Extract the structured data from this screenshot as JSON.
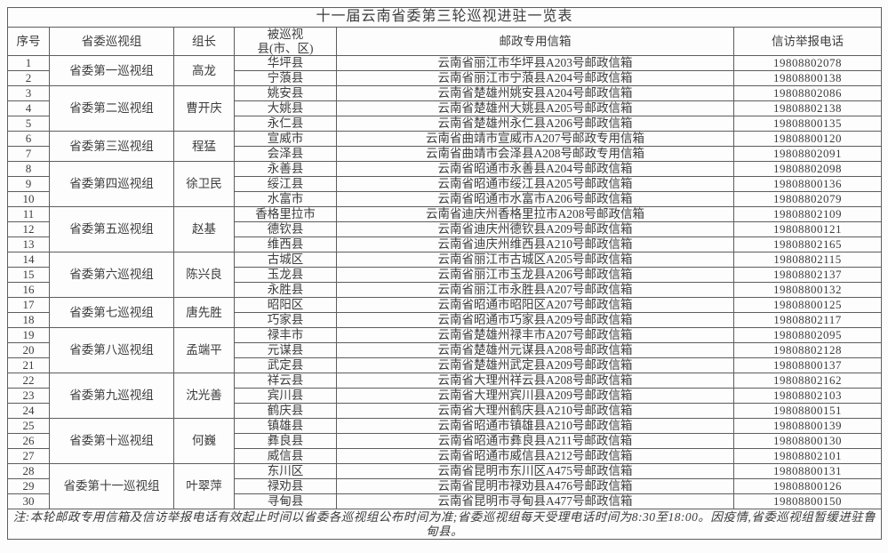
{
  "theme": {
    "background": "#fcfcfc",
    "border_color": "#5d5d5d",
    "text_color": "#3c3c3c"
  },
  "page": {
    "title": "十一届云南省委第三轮巡视进驻一览表"
  },
  "table": {
    "headers": [
      "序号",
      "省委巡视组",
      "组长",
      "被巡视\n县(市、区)",
      "邮政专用信箱",
      "信访举报电话"
    ],
    "groups": [
      {
        "name": "省委第一巡视组",
        "leader": "高龙",
        "rows": [
          {
            "no": "1",
            "county": "华坪县",
            "mailbox": "云南省丽江市华坪县A203号邮政信箱",
            "phone": "19808802078"
          },
          {
            "no": "2",
            "county": "宁蒗县",
            "mailbox": "云南省丽江市宁蒗县A204号邮政信箱",
            "phone": "19808800138"
          }
        ]
      },
      {
        "name": "省委第二巡视组",
        "leader": "曹开庆",
        "rows": [
          {
            "no": "3",
            "county": "姚安县",
            "mailbox": "云南省楚雄州姚安县A204号邮政信箱",
            "phone": "19808802086"
          },
          {
            "no": "4",
            "county": "大姚县",
            "mailbox": "云南省楚雄州大姚县A205号邮政信箱",
            "phone": "19808802138"
          },
          {
            "no": "5",
            "county": "永仁县",
            "mailbox": "云南省楚雄州永仁县A206号邮政信箱",
            "phone": "19808800135"
          }
        ]
      },
      {
        "name": "省委第三巡视组",
        "leader": "程猛",
        "rows": [
          {
            "no": "6",
            "county": "宣威市",
            "mailbox": "云南省曲靖市宣威市A207号邮政专用信箱",
            "phone": "19808800120"
          },
          {
            "no": "7",
            "county": "会泽县",
            "mailbox": "云南省曲靖市会泽县A208号邮政专用信箱",
            "phone": "19808802091"
          }
        ]
      },
      {
        "name": "省委第四巡视组",
        "leader": "徐卫民",
        "rows": [
          {
            "no": "8",
            "county": "永善县",
            "mailbox": "云南省昭通市永善县A204号邮政信箱",
            "phone": "19808802098"
          },
          {
            "no": "9",
            "county": "绥江县",
            "mailbox": "云南省昭通市绥江县A205号邮政信箱",
            "phone": "19808800136"
          },
          {
            "no": "10",
            "county": "水富市",
            "mailbox": "云南省昭通市水富市A206号邮政信箱",
            "phone": "19808802079"
          }
        ]
      },
      {
        "name": "省委第五巡视组",
        "leader": "赵基",
        "rows": [
          {
            "no": "11",
            "county": "香格里拉市",
            "mailbox": "云南省迪庆州香格里拉市A208号邮政信箱",
            "phone": "19808802109"
          },
          {
            "no": "12",
            "county": "德钦县",
            "mailbox": "云南省迪庆州德钦县A209号邮政信箱",
            "phone": "19808800121"
          },
          {
            "no": "13",
            "county": "维西县",
            "mailbox": "云南省迪庆州维西县A210号邮政信箱",
            "phone": "19808802165"
          }
        ]
      },
      {
        "name": "省委第六巡视组",
        "leader": "陈兴良",
        "rows": [
          {
            "no": "14",
            "county": "古城区",
            "mailbox": "云南省丽江市古城区A205号邮政信箱",
            "phone": "19808802115"
          },
          {
            "no": "15",
            "county": "玉龙县",
            "mailbox": "云南省丽江市玉龙县A206号邮政信箱",
            "phone": "19808802137"
          },
          {
            "no": "16",
            "county": "永胜县",
            "mailbox": "云南省丽江市永胜县A207号邮政信箱",
            "phone": "19808800132"
          }
        ]
      },
      {
        "name": "省委第七巡视组",
        "leader": "唐先胜",
        "rows": [
          {
            "no": "17",
            "county": "昭阳区",
            "mailbox": "云南省昭通市昭阳区A207号邮政信箱",
            "phone": "19808800125"
          },
          {
            "no": "18",
            "county": "巧家县",
            "mailbox": "云南省昭通市巧家县A209号邮政信箱",
            "phone": "19808802117"
          }
        ]
      },
      {
        "name": "省委第八巡视组",
        "leader": "孟端平",
        "rows": [
          {
            "no": "19",
            "county": "禄丰市",
            "mailbox": "云南省楚雄州禄丰市A207号邮政信箱",
            "phone": "19808802095"
          },
          {
            "no": "20",
            "county": "元谋县",
            "mailbox": "云南省楚雄州元谋县A208号邮政信箱",
            "phone": "19808802128"
          },
          {
            "no": "21",
            "county": "武定县",
            "mailbox": "云南省楚雄州武定县A209号邮政信箱",
            "phone": "19808800137"
          }
        ]
      },
      {
        "name": "省委第九巡视组",
        "leader": "沈光善",
        "rows": [
          {
            "no": "22",
            "county": "祥云县",
            "mailbox": "云南省大理州祥云县A208号邮政信箱",
            "phone": "19808802162"
          },
          {
            "no": "23",
            "county": "宾川县",
            "mailbox": "云南省大理州宾川县A209号邮政信箱",
            "phone": "19808802103"
          },
          {
            "no": "24",
            "county": "鹤庆县",
            "mailbox": "云南省大理州鹤庆县A210号邮政信箱",
            "phone": "19808800151"
          }
        ]
      },
      {
        "name": "省委第十巡视组",
        "leader": "何巍",
        "rows": [
          {
            "no": "25",
            "county": "镇雄县",
            "mailbox": "云南省昭通市镇雄县A210号邮政信箱",
            "phone": "19808800139"
          },
          {
            "no": "26",
            "county": "彝良县",
            "mailbox": "云南省昭通市彝良县A211号邮政信箱",
            "phone": "19808800130"
          },
          {
            "no": "27",
            "county": "威信县",
            "mailbox": "云南省昭通市威信县A212号邮政信箱",
            "phone": "19808802101"
          }
        ]
      },
      {
        "name": "省委第十一巡视组",
        "leader": "叶翠萍",
        "rows": [
          {
            "no": "28",
            "county": "东川区",
            "mailbox": "云南省昆明市东川区A475号邮政信箱",
            "phone": "19808800131"
          },
          {
            "no": "29",
            "county": "禄劝县",
            "mailbox": "云南省昆明市禄劝县A476号邮政信箱",
            "phone": "19808800126"
          },
          {
            "no": "30",
            "county": "寻甸县",
            "mailbox": "云南省昆明市寻甸县A477号邮政信箱",
            "phone": "19808800150"
          }
        ]
      }
    ],
    "note": "注:本轮邮政专用信箱及信访举报电话有效起止时间以省委各巡视组公布时间为准;省委巡视组每天受理电话时间为8:30至18:00。因疫情,省委巡视组暂缓进驻鲁甸县。"
  }
}
